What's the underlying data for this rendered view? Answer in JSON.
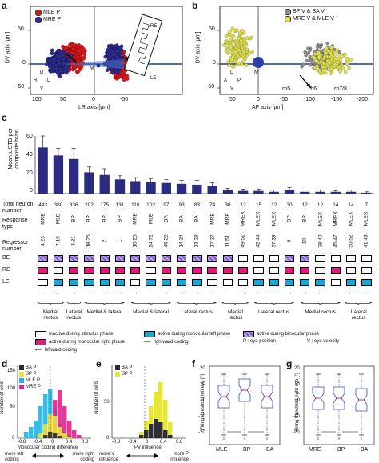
{
  "panel_a": {
    "letter": "a",
    "legend": [
      {
        "label": "MLE P",
        "color": "#d7191c"
      },
      {
        "label": "MRE P",
        "color": "#2c2c9a"
      }
    ],
    "ylabel": "DV axis [µm]",
    "xlabel": "LR axis [µm]",
    "yticks": [
      "50",
      "0",
      "-50"
    ],
    "xticks": [
      "100",
      "50",
      "0",
      "-50"
    ],
    "M_label": "M",
    "compass": {
      "top": "D",
      "bottom": "V",
      "left": "R",
      "right": "L"
    },
    "inset_labels": [
      "RE",
      "LE"
    ]
  },
  "panel_b": {
    "letter": "b",
    "legend": [
      {
        "label": "BP V & BA V",
        "color": "#8c8c8c"
      },
      {
        "label": "MRE V & MLE V",
        "color": "#e0e040"
      }
    ],
    "ylabel": "DV axis [µm]",
    "xlabel": "AP axis [µm]",
    "yticks": [
      "50",
      "0",
      "-50"
    ],
    "xticks": [
      "50",
      "0",
      "-50",
      "-100",
      "-150",
      "-200"
    ],
    "M_label": "M",
    "compass": {
      "top": "D",
      "bottom": "V",
      "left": "A",
      "right": "P"
    },
    "rh_labels": [
      "rh5",
      "rh6",
      "rh7/8"
    ]
  },
  "panel_c": {
    "letter": "c",
    "ylabel": "Mean ± STD per composite brain",
    "yticks": [
      "60",
      "40",
      "20",
      "0"
    ],
    "row_titles": {
      "total": "Total neuron number",
      "response": "Response type",
      "regressor": "Regressor number",
      "be": "BE",
      "re": "RE",
      "le": "LE"
    },
    "columns": [
      {
        "n": "443",
        "type": "MRE",
        "reg": "4.23",
        "mean": 52,
        "sd": 13
      },
      {
        "n": "380",
        "type": "MLE",
        "reg": "7.19",
        "mean": 43,
        "sd": 8
      },
      {
        "n": "336",
        "type": "BP",
        "reg": "3.21",
        "mean": 39,
        "sd": 12
      },
      {
        "n": "202",
        "type": "BP",
        "reg": "18.25",
        "mean": 24,
        "sd": 6
      },
      {
        "n": "175",
        "type": "BP",
        "reg": "2",
        "mean": 21,
        "sd": 7
      },
      {
        "n": "131",
        "type": "BP",
        "reg": "1",
        "mean": 16,
        "sd": 4
      },
      {
        "n": "118",
        "type": "MRE",
        "reg": "15.25",
        "mean": 14,
        "sd": 4
      },
      {
        "n": "102",
        "type": "MLE",
        "reg": "24.72",
        "mean": 13,
        "sd": 4
      },
      {
        "n": "97",
        "type": "BA",
        "reg": "46.22",
        "mean": 12,
        "sd": 4
      },
      {
        "n": "93",
        "type": "BA",
        "reg": "14.24",
        "mean": 11,
        "sd": 4
      },
      {
        "n": "83",
        "type": "BA",
        "reg": "13.23",
        "mean": 10,
        "sd": 5
      },
      {
        "n": "74",
        "type": "MRE",
        "reg": "17.27",
        "mean": 9,
        "sd": 3
      },
      {
        "n": "30",
        "type": "MRE",
        "reg": "11.51",
        "mean": 4,
        "sd": 2
      },
      {
        "n": "12",
        "type": "MREX",
        "reg": "49.51",
        "mean": 3,
        "sd": 2
      },
      {
        "n": "15",
        "type": "MLEX",
        "reg": "42.44",
        "mean": 3,
        "sd": 2
      },
      {
        "n": "12",
        "type": "MLEX",
        "reg": "37.39",
        "mean": 2,
        "sd": 2
      },
      {
        "n": "30",
        "type": "BP",
        "reg": "9",
        "mean": 4,
        "sd": 3
      },
      {
        "n": "12",
        "type": "BP",
        "reg": "10",
        "mean": 2,
        "sd": 2
      },
      {
        "n": "12",
        "type": "MLEX",
        "reg": "38.40",
        "mean": 2,
        "sd": 2
      },
      {
        "n": "14",
        "type": "MREX",
        "reg": "45.47",
        "mean": 2,
        "sd": 1
      },
      {
        "n": "14",
        "type": "MLEX",
        "reg": "50.52",
        "mean": 2,
        "sd": 2
      },
      {
        "n": "7",
        "type": "MLEX",
        "reg": "41.43",
        "mean": 1,
        "sd": 1
      }
    ],
    "groups": [
      "Medial rectus",
      "Lateral rectus",
      "Medial & lateral",
      "Medial & lateral",
      "Lateral rectus",
      "Medial rectus",
      "Lateral rectus",
      "Medial rectus",
      "Lateral rectus"
    ],
    "legend": [
      {
        "label": "inactive during stimulus phase",
        "kind": "white"
      },
      {
        "label": "active during monocular right phase",
        "kind": "red"
      },
      {
        "label": "active during monocular left phase",
        "kind": "cyan"
      },
      {
        "label": "active during binocular phase",
        "kind": "purple"
      },
      {
        "label": "leftward coding",
        "kind": "arrow-left"
      },
      {
        "label": "rightward coding",
        "kind": "arrow-right"
      },
      {
        "label": "P : eye position",
        "kind": "text"
      },
      {
        "label": "V : eye velocity",
        "kind": "text"
      }
    ]
  },
  "panel_d": {
    "letter": "d",
    "legend": [
      {
        "label": "BA P",
        "color": "#2e2e2e"
      },
      {
        "label": "BP P",
        "color": "#e6e633"
      },
      {
        "label": "MLE P",
        "color": "#24b4e6"
      },
      {
        "label": "MRE P",
        "color": "#e0248c"
      }
    ],
    "ylabel": "Number of cells",
    "yticks": [
      "150",
      "100",
      "50",
      "0"
    ],
    "xlabel": "Monocular coding difference",
    "xticks": [
      "-0.8",
      "-0.4",
      "0",
      "0.4",
      "0.8"
    ],
    "arrow_left": "more left coding",
    "arrow_right": "more right coding"
  },
  "panel_e": {
    "letter": "e",
    "legend": [
      {
        "label": "BA P",
        "color": "#2e2e2e"
      },
      {
        "label": "BP P",
        "color": "#e6e633"
      }
    ],
    "ylabel": "Number of cells",
    "yticks": [
      "50",
      "0"
    ],
    "xlabel": "PV influence",
    "xticks": [
      "-0.8",
      "-0.4",
      "0",
      "0.4",
      "0.8"
    ],
    "arrow_left": "more V influence",
    "arrow_right": "more P influence"
  },
  "panel_f": {
    "letter": "f",
    "ylabel": "Firing threshold left eye [°]",
    "yticks": [
      "20",
      "10",
      "0",
      "-10",
      "-20"
    ],
    "categories": [
      "MLE",
      "BP",
      "BA"
    ]
  },
  "panel_g": {
    "letter": "g",
    "ylabel": "Firing threshold right eye [°]",
    "yticks": [
      "20",
      "10",
      "0",
      "-10",
      "-20"
    ],
    "categories": [
      "MRE",
      "BP",
      "BA"
    ]
  }
}
